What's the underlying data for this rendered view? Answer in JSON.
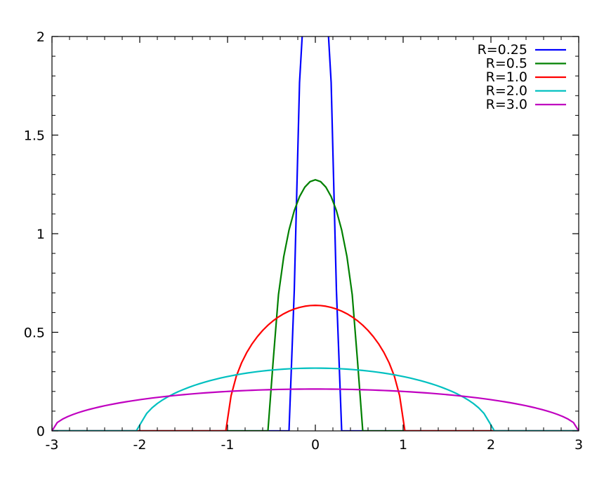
{
  "chart_data": {
    "type": "line",
    "title": "",
    "xlabel": "",
    "ylabel": "",
    "xlim": [
      -3,
      3
    ],
    "ylim": [
      0,
      2
    ],
    "x_ticks": [
      {
        "value": -3,
        "label": "-3"
      },
      {
        "value": -2,
        "label": "-2"
      },
      {
        "value": -1,
        "label": "-1"
      },
      {
        "value": 0,
        "label": "0"
      },
      {
        "value": 1,
        "label": "1"
      },
      {
        "value": 2,
        "label": "2"
      },
      {
        "value": 3,
        "label": "3"
      }
    ],
    "y_ticks": [
      {
        "value": 0,
        "label": "0"
      },
      {
        "value": 0.5,
        "label": "0.5"
      },
      {
        "value": 1,
        "label": "1"
      },
      {
        "value": 1.5,
        "label": "1.5"
      },
      {
        "value": 2,
        "label": "2"
      }
    ],
    "grid": false,
    "legend_position": "top-right",
    "series": [
      {
        "name": "R=0.25",
        "radius": 0.25,
        "color": "#0000ff"
      },
      {
        "name": "R=0.5",
        "radius": 0.5,
        "color": "#008000"
      },
      {
        "name": "R=1.0",
        "radius": 1.0,
        "color": "#ff0000"
      },
      {
        "name": "R=2.0",
        "radius": 2.0,
        "color": "#00c0c0"
      },
      {
        "name": "R=3.0",
        "radius": 3.0,
        "color": "#c000c0"
      }
    ]
  }
}
